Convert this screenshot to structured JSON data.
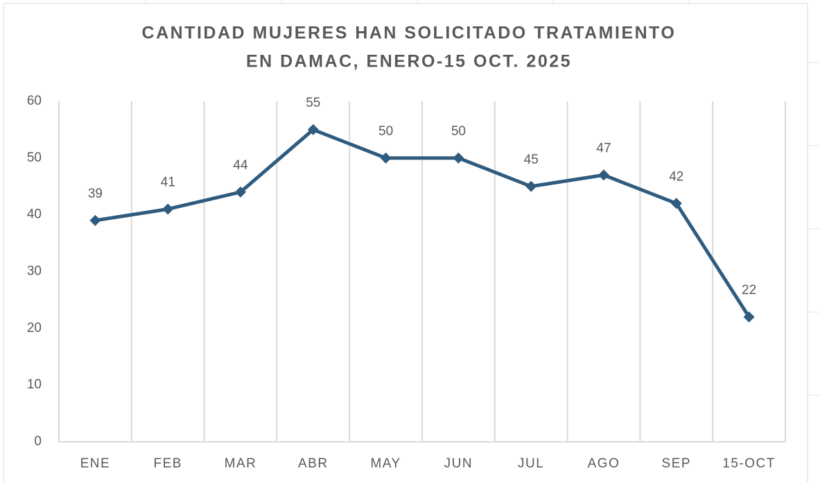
{
  "chart_data": {
    "type": "line",
    "title": [
      "CANTIDAD MUJERES HAN SOLICITADO TRATAMIENTO",
      "EN DAMAC, ENERO-15 OCT.  2025"
    ],
    "categories": [
      "ENE",
      "FEB",
      "MAR",
      "ABR",
      "MAY",
      "JUN",
      "JUL",
      "AGO",
      "SEP",
      "15-OCT"
    ],
    "values": [
      39,
      41,
      44,
      55,
      50,
      50,
      45,
      47,
      42,
      22
    ],
    "color": "#2e5b7e",
    "ylim": [
      0,
      60
    ],
    "yticks": [
      0,
      10,
      20,
      30,
      40,
      50,
      60
    ],
    "category_grid": true,
    "data_labels": true,
    "marker": "diamond"
  }
}
